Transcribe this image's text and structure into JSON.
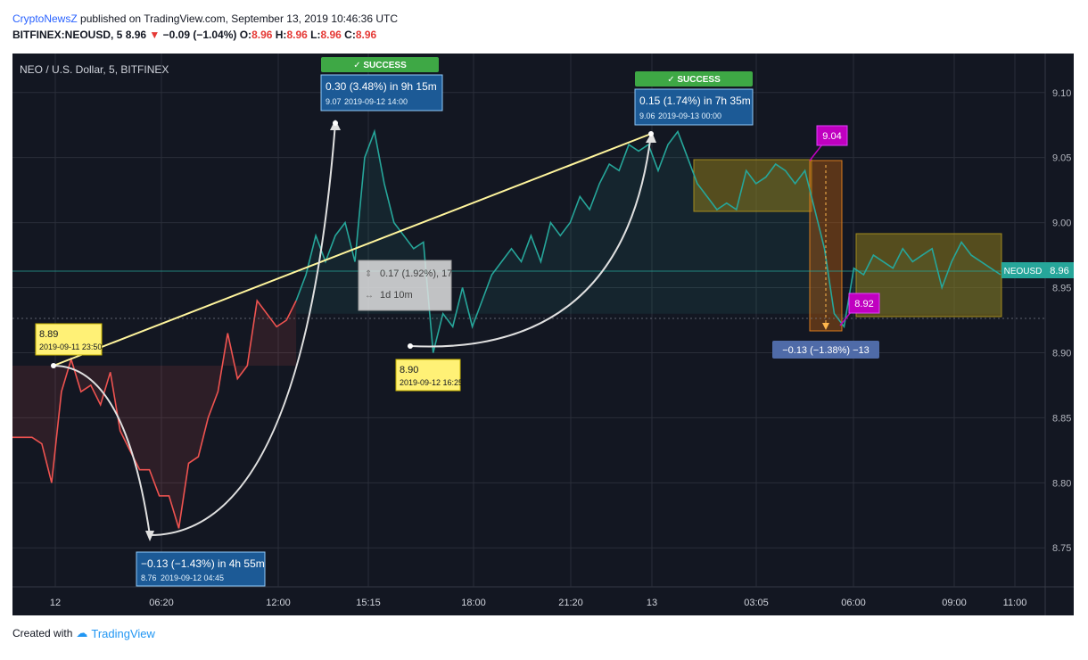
{
  "header": {
    "author": "CryptoNewsZ",
    "published": " published on TradingView.com, September 13, 2019 10:46:36 UTC",
    "symbol": "BITFINEX:NEOUSD, 5",
    "last": "8.96",
    "arrow": "▼",
    "change": "−0.09 (−1.04%)",
    "o_label": "O:",
    "o": "8.96",
    "h_label": "H:",
    "h": "8.96",
    "l_label": "L:",
    "l": "8.96",
    "c_label": "C:",
    "c": "8.96"
  },
  "footer": {
    "created_with": "Created with",
    "brand": "TradingView"
  },
  "colors": {
    "background": "#131722",
    "up": "#26a69a",
    "down": "#ef5350",
    "trendline": "#fff59d",
    "success": "#4caf50",
    "measure": "#1565c0",
    "magenta": "#c000c0",
    "range_box": "#a28b1d"
  },
  "chart_data": {
    "type": "line",
    "title": "NEO / U.S. Dollar, 5, BITFINEX",
    "x_ticks": [
      "12",
      "06:20",
      "12:00",
      "15:15",
      "18:00",
      "21:20",
      "13",
      "03:05",
      "06:00",
      "09:00",
      "11:00"
    ],
    "y_ticks": [
      "9.10",
      "9.05",
      "9.00",
      "8.95",
      "8.90",
      "8.85",
      "8.80",
      "8.75"
    ],
    "ylim": [
      8.72,
      9.13
    ],
    "grid": true,
    "last_price_label": "NEOUSD",
    "last_price": "8.96",
    "series": [
      {
        "values": [
          8.835,
          8.835,
          8.835,
          8.83,
          8.8,
          8.87,
          8.895,
          8.87,
          8.875,
          8.86,
          8.885,
          8.84,
          8.825,
          8.81,
          8.81,
          8.79,
          8.79,
          8.765,
          8.815,
          8.82,
          8.85,
          8.87,
          8.915,
          8.88,
          8.89,
          8.94,
          8.93,
          8.92,
          8.925,
          8.94,
          8.96,
          8.99,
          8.97,
          8.99,
          9.0,
          8.97,
          9.05,
          9.07,
          9.03,
          9.0,
          8.99,
          8.98,
          8.985,
          8.9,
          8.93,
          8.92,
          8.95,
          8.92,
          8.94,
          8.96,
          8.97,
          8.98,
          8.97,
          8.99,
          8.97,
          9.0,
          8.99,
          9.0,
          9.02,
          9.01,
          9.03,
          9.045,
          9.04,
          9.06,
          9.055,
          9.06,
          9.04,
          9.06,
          9.07,
          9.05,
          9.03,
          9.02,
          9.01,
          9.015,
          9.01,
          9.04,
          9.03,
          9.035,
          9.045,
          9.04,
          9.03,
          9.04,
          9.01,
          8.98,
          8.93,
          8.92,
          8.965,
          8.96,
          8.975,
          8.97,
          8.965,
          8.98,
          8.97,
          8.975,
          8.98,
          8.95,
          8.97,
          8.985,
          8.975,
          8.97,
          8.965,
          8.96
        ]
      }
    ],
    "annotations": [
      {
        "type": "price_label",
        "value": "8.89",
        "date": "2019-09-11 23:50"
      },
      {
        "type": "price_label",
        "value": "8.90",
        "date": "2019-09-12 16:25"
      },
      {
        "type": "measure",
        "text": "−0.13 (−1.43%) in 4h 55m",
        "value": "8.76",
        "date": "2019-09-12  04:45"
      },
      {
        "type": "measure",
        "text": "0.30 (3.48%) in 9h 15m",
        "value": "9.07",
        "date": "2019-09-12  14:00",
        "status": "✓ SUCCESS"
      },
      {
        "type": "measure",
        "text": "0.15 (1.74%) in 7h 35m",
        "value": "9.06",
        "date": "2019-09-13  00:00",
        "status": "✓ SUCCESS"
      },
      {
        "type": "range_info",
        "line1": "0.17 (1.92%), 17",
        "line2": "1d 10m"
      },
      {
        "type": "callout",
        "value": "9.04"
      },
      {
        "type": "callout",
        "value": "8.92"
      },
      {
        "type": "range_result",
        "text": "−0.13 (−1.38%) −13"
      }
    ]
  }
}
